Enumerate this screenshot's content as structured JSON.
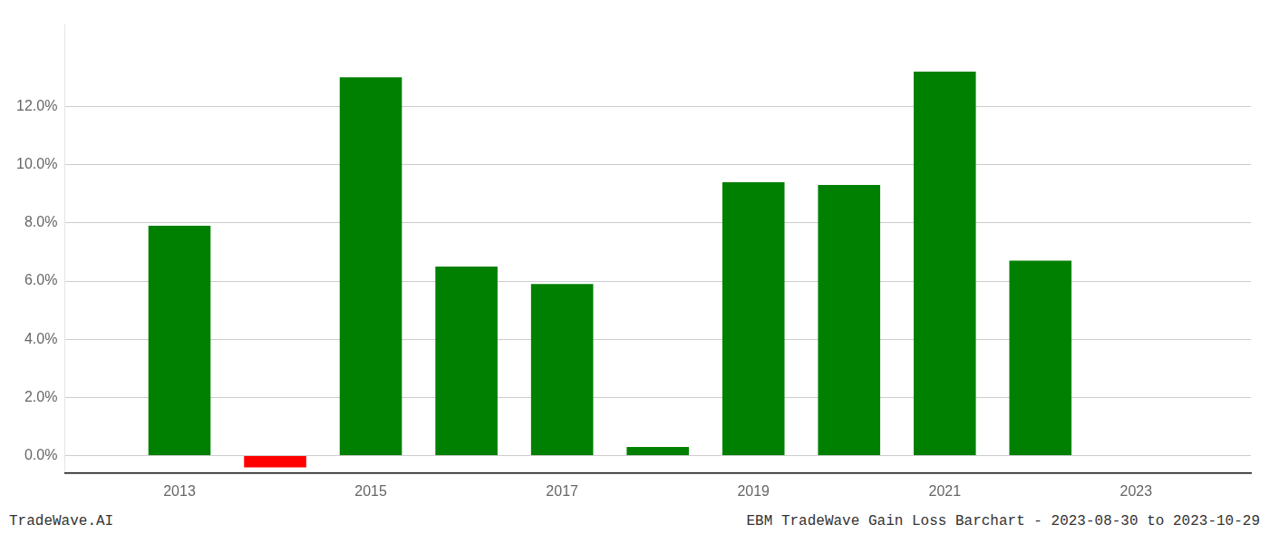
{
  "chart_data": {
    "type": "bar",
    "x": [
      2013,
      2014,
      2015,
      2016,
      2017,
      2018,
      2019,
      2020,
      2021,
      2022,
      2023
    ],
    "values": [
      0.079,
      -0.004,
      0.13,
      0.065,
      0.059,
      0.003,
      0.094,
      0.093,
      0.132,
      0.067,
      0.0
    ],
    "colors": [
      "#008000",
      "#ff0000",
      "#008000",
      "#008000",
      "#008000",
      "#008000",
      "#008000",
      "#008000",
      "#008000",
      "#008000",
      "#008000"
    ],
    "xlim": [
      2011.8,
      2024.2
    ],
    "xticks": [
      2013,
      2015,
      2017,
      2019,
      2021,
      2023
    ],
    "ylim": [
      -0.006,
      0.148
    ],
    "yticks": [
      {
        "value": 0.0,
        "label": "0.0%"
      },
      {
        "value": 0.02,
        "label": "2.0%"
      },
      {
        "value": 0.04,
        "label": "4.0%"
      },
      {
        "value": 0.06,
        "label": "6.0%"
      },
      {
        "value": 0.08,
        "label": "8.0%"
      },
      {
        "value": 0.1,
        "label": "10.0%"
      },
      {
        "value": 0.12,
        "label": "12.0%"
      }
    ],
    "grid": true,
    "annotations": [
      "TradeWave.AI",
      "EBM TradeWave Gain Loss Barchart - 2023-08-30 to 2023-10-29"
    ]
  }
}
